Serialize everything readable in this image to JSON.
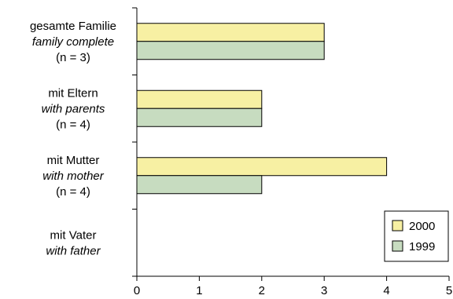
{
  "chart_data": {
    "type": "bar",
    "orientation": "horizontal",
    "categories": [
      {
        "de": "gesamte Familie",
        "en": "family complete",
        "n": "(n = 3)"
      },
      {
        "de": "mit Eltern",
        "en": "with parents",
        "n": "(n = 4)"
      },
      {
        "de": "mit Mutter",
        "en": "with mother",
        "n": "(n = 4)"
      },
      {
        "de": "mit Vater",
        "en": "with father",
        "n": ""
      }
    ],
    "series": [
      {
        "name": "2000",
        "color": "#f7f0a3",
        "values": [
          3,
          2,
          4,
          0
        ]
      },
      {
        "name": "1999",
        "color": "#c7dcc0",
        "values": [
          3,
          2,
          2,
          0
        ]
      }
    ],
    "xlim": [
      0,
      5
    ],
    "xticks": [
      "0",
      "1",
      "2",
      "3",
      "4",
      "5"
    ],
    "grid": false,
    "legend_position": "bottom-right",
    "title": "",
    "xlabel": "",
    "ylabel": ""
  }
}
